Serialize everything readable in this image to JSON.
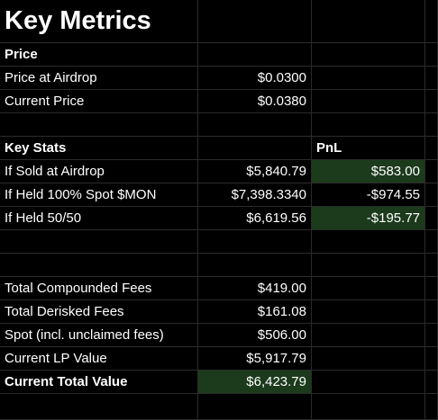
{
  "title": "Key Metrics",
  "price_section": {
    "header": "Price",
    "rows": [
      {
        "label": "Price at Airdrop",
        "value": "$0.0300"
      },
      {
        "label": "Current Price",
        "value": "$0.0380"
      }
    ]
  },
  "key_stats": {
    "header": "Key Stats",
    "pnl_header": "PnL",
    "rows": [
      {
        "label": "If Sold at Airdrop",
        "value": "$5,840.79",
        "pnl": "$583.00"
      },
      {
        "label": "If Held 100% Spot $MON",
        "value": "$7,398.3340",
        "pnl": "-$974.55"
      },
      {
        "label": "If Held 50/50",
        "value": "$6,619.56",
        "pnl": "-$195.77"
      }
    ]
  },
  "fees": {
    "rows": [
      {
        "label": "Total Compounded Fees",
        "value": "$419.00"
      },
      {
        "label": "Total Derisked Fees",
        "value": "$161.08"
      },
      {
        "label": "Spot (incl. unclaimed fees)",
        "value": "$506.00"
      },
      {
        "label": "Current LP Value",
        "value": "$5,917.79"
      },
      {
        "label": "Current Total Value",
        "value": "$6,423.79"
      }
    ]
  },
  "colors": {
    "background": "#000000",
    "gridline": "#2b2b2b",
    "highlight_green": "#1c3a1c",
    "text": "#ffffff"
  }
}
